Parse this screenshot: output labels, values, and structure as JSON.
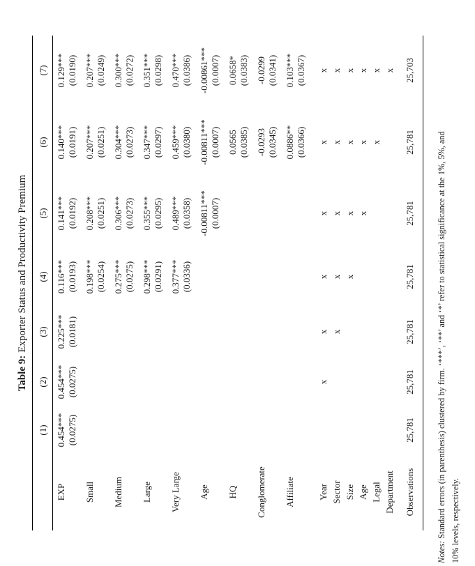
{
  "title": {
    "number": "Table 9:",
    "caption": "Exporter Status and Productivity Premium"
  },
  "table": {
    "columns": [
      "(1)",
      "(2)",
      "(3)",
      "(4)",
      "(5)",
      "(6)",
      "(7)"
    ],
    "coef_rows": [
      {
        "label": "EXP",
        "cells": [
          {
            "coef": "0.454***",
            "se": "(0.0275)"
          },
          {
            "coef": "0.454***",
            "se": "(0.0275)"
          },
          {
            "coef": "0.225***",
            "se": "(0.0181)"
          },
          {
            "coef": "0.116***",
            "se": "(0.0193)"
          },
          {
            "coef": "0.141***",
            "se": "(0.0192)"
          },
          {
            "coef": "0.140***",
            "se": "(0.0191)"
          },
          {
            "coef": "0.129***",
            "se": "(0.0190)"
          }
        ]
      },
      {
        "label": "Small",
        "cells": [
          null,
          null,
          null,
          {
            "coef": "0.198***",
            "se": "(0.0254)"
          },
          {
            "coef": "0.208***",
            "se": "(0.0251)"
          },
          {
            "coef": "0.207***",
            "se": "(0.0251)"
          },
          {
            "coef": "0.207***",
            "se": "(0.0249)"
          }
        ]
      },
      {
        "label": "Medium",
        "cells": [
          null,
          null,
          null,
          {
            "coef": "0.275***",
            "se": "(0.0275)"
          },
          {
            "coef": "0.306***",
            "se": "(0.0273)"
          },
          {
            "coef": "0.304***",
            "se": "(0.0273)"
          },
          {
            "coef": "0.300***",
            "se": "(0.0272)"
          }
        ]
      },
      {
        "label": "Large",
        "cells": [
          null,
          null,
          null,
          {
            "coef": "0.298***",
            "se": "(0.0291)"
          },
          {
            "coef": "0.355***",
            "se": "(0.0295)"
          },
          {
            "coef": "0.347***",
            "se": "(0.0297)"
          },
          {
            "coef": "0.351***",
            "se": "(0.0298)"
          }
        ]
      },
      {
        "label": "Very Large",
        "cells": [
          null,
          null,
          null,
          {
            "coef": "0.377***",
            "se": "(0.0336)"
          },
          {
            "coef": "0.489***",
            "se": "(0.0358)"
          },
          {
            "coef": "0.459***",
            "se": "(0.0380)"
          },
          {
            "coef": "0.470***",
            "se": "(0.0386)"
          }
        ]
      },
      {
        "label": "Age",
        "cells": [
          null,
          null,
          null,
          null,
          {
            "coef": "-0.00811***",
            "se": "(0.0007)"
          },
          {
            "coef": "-0.00811***",
            "se": "(0.0007)"
          },
          {
            "coef": "-0.00861***",
            "se": "(0.0007)"
          }
        ]
      },
      {
        "label": "HQ",
        "cells": [
          null,
          null,
          null,
          null,
          null,
          {
            "coef": "0.0565",
            "se": "(0.0385)"
          },
          {
            "coef": "0.0658*",
            "se": "(0.0383)"
          }
        ]
      },
      {
        "label": "Conglomerate",
        "cells": [
          null,
          null,
          null,
          null,
          null,
          {
            "coef": "-0.0293",
            "se": "(0.0345)"
          },
          {
            "coef": "-0.0299",
            "se": "(0.0341)"
          }
        ]
      },
      {
        "label": "Affiliate",
        "cells": [
          null,
          null,
          null,
          null,
          null,
          {
            "coef": "0.0886**",
            "se": "(0.0366)"
          },
          {
            "coef": "0.103***",
            "se": "(0.0367)"
          }
        ]
      }
    ],
    "fe_rows": [
      {
        "label": "Year",
        "marks": [
          "",
          "x",
          "x",
          "x",
          "x",
          "x",
          "x"
        ]
      },
      {
        "label": "Sector",
        "marks": [
          "",
          "",
          "x",
          "x",
          "x",
          "x",
          "x"
        ]
      },
      {
        "label": "Size",
        "marks": [
          "",
          "",
          "",
          "x",
          "x",
          "x",
          "x"
        ]
      },
      {
        "label": "Age",
        "marks": [
          "",
          "",
          "",
          "",
          "x",
          "x",
          "x"
        ]
      },
      {
        "label": "Legal",
        "marks": [
          "",
          "",
          "",
          "",
          "",
          "x",
          "x"
        ]
      },
      {
        "label": "Department",
        "marks": [
          "",
          "",
          "",
          "",
          "",
          "",
          "x"
        ]
      }
    ],
    "obs_row": {
      "label": "Observations",
      "values": [
        "25,781",
        "25,781",
        "25,781",
        "25,781",
        "25,781",
        "25,781",
        "25,703"
      ]
    }
  },
  "notes": {
    "label": "Notes:",
    "line1": "Standard errors (in parenthesis) clustered by firm. ‘***’, ‘**’ and ‘*’ refer to statistical significance at the 1%, 5%, and",
    "line2": "10% levels, respectively."
  }
}
